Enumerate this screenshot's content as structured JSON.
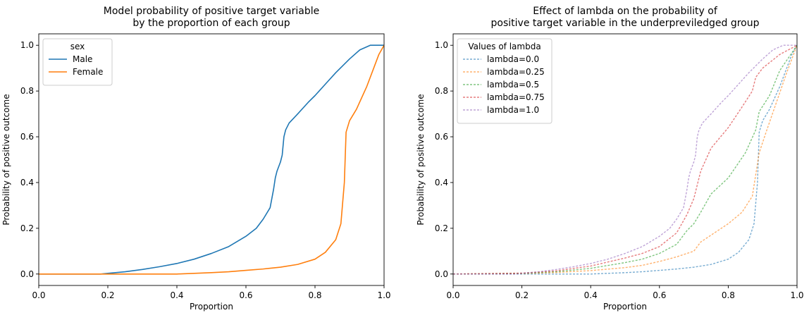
{
  "chart_data": [
    {
      "type": "line",
      "title": "Model probability of positive target variable\nby the proportion of each group",
      "xlabel": "Proportion",
      "ylabel": "Probability of positive outcome",
      "xlim": [
        0,
        1
      ],
      "ylim": [
        -0.05,
        1.05
      ],
      "xticks": [
        "0.0",
        "0.2",
        "0.4",
        "0.6",
        "0.8",
        "1.0"
      ],
      "yticks": [
        "0.0",
        "0.2",
        "0.4",
        "0.6",
        "0.8",
        "1.0"
      ],
      "grid": false,
      "legend": {
        "title": "sex",
        "location": "upper-left"
      },
      "series": [
        {
          "name": "Male",
          "color": "#1f77b4",
          "dash": "solid",
          "points": [
            [
              0,
              0
            ],
            [
              0.18,
              0
            ],
            [
              0.2,
              0.003
            ],
            [
              0.25,
              0.01
            ],
            [
              0.3,
              0.02
            ],
            [
              0.35,
              0.032
            ],
            [
              0.4,
              0.046
            ],
            [
              0.45,
              0.065
            ],
            [
              0.5,
              0.09
            ],
            [
              0.55,
              0.12
            ],
            [
              0.6,
              0.165
            ],
            [
              0.63,
              0.2
            ],
            [
              0.65,
              0.24
            ],
            [
              0.67,
              0.29
            ],
            [
              0.68,
              0.37
            ],
            [
              0.685,
              0.42
            ],
            [
              0.69,
              0.45
            ],
            [
              0.7,
              0.49
            ],
            [
              0.705,
              0.52
            ],
            [
              0.71,
              0.6
            ],
            [
              0.715,
              0.63
            ],
            [
              0.725,
              0.66
            ],
            [
              0.75,
              0.7
            ],
            [
              0.78,
              0.75
            ],
            [
              0.8,
              0.78
            ],
            [
              0.83,
              0.83
            ],
            [
              0.86,
              0.88
            ],
            [
              0.9,
              0.94
            ],
            [
              0.93,
              0.98
            ],
            [
              0.96,
              1.0
            ],
            [
              1.0,
              1.0
            ]
          ]
        },
        {
          "name": "Female",
          "color": "#ff7f0e",
          "dash": "solid",
          "points": [
            [
              0,
              0
            ],
            [
              0.4,
              0
            ],
            [
              0.45,
              0.003
            ],
            [
              0.5,
              0.006
            ],
            [
              0.55,
              0.01
            ],
            [
              0.6,
              0.016
            ],
            [
              0.65,
              0.022
            ],
            [
              0.7,
              0.03
            ],
            [
              0.75,
              0.042
            ],
            [
              0.8,
              0.065
            ],
            [
              0.83,
              0.095
            ],
            [
              0.86,
              0.15
            ],
            [
              0.875,
              0.22
            ],
            [
              0.885,
              0.4
            ],
            [
              0.89,
              0.62
            ],
            [
              0.9,
              0.67
            ],
            [
              0.92,
              0.72
            ],
            [
              0.95,
              0.82
            ],
            [
              0.97,
              0.9
            ],
            [
              0.985,
              0.96
            ],
            [
              1.0,
              1.0
            ]
          ]
        }
      ]
    },
    {
      "type": "line",
      "title": "Effect of lambda on the probability of\npositive target variable in the underpreviledged group",
      "xlabel": "Proportion",
      "ylabel": "Probability of positive outcome",
      "xlim": [
        0,
        1
      ],
      "ylim": [
        -0.05,
        1.05
      ],
      "xticks": [
        "0.0",
        "0.2",
        "0.4",
        "0.6",
        "0.8",
        "1.0"
      ],
      "yticks": [
        "0.0",
        "0.2",
        "0.4",
        "0.6",
        "0.8",
        "1.0"
      ],
      "grid": false,
      "legend": {
        "title": "Values of lambda",
        "location": "upper-left"
      },
      "series": [
        {
          "name": "lambda=0.0",
          "color": "#1f77b4",
          "dash": "dashed",
          "points": [
            [
              0,
              0
            ],
            [
              0.4,
              0
            ],
            [
              0.45,
              0.003
            ],
            [
              0.5,
              0.006
            ],
            [
              0.55,
              0.01
            ],
            [
              0.6,
              0.016
            ],
            [
              0.65,
              0.022
            ],
            [
              0.7,
              0.03
            ],
            [
              0.75,
              0.042
            ],
            [
              0.8,
              0.065
            ],
            [
              0.83,
              0.095
            ],
            [
              0.86,
              0.15
            ],
            [
              0.875,
              0.22
            ],
            [
              0.885,
              0.4
            ],
            [
              0.89,
              0.62
            ],
            [
              0.9,
              0.67
            ],
            [
              0.92,
              0.72
            ],
            [
              0.95,
              0.82
            ],
            [
              0.97,
              0.9
            ],
            [
              0.985,
              0.96
            ],
            [
              1.0,
              1.0
            ]
          ]
        },
        {
          "name": "lambda=0.25",
          "color": "#ff7f0e",
          "dash": "dashed",
          "points": [
            [
              0,
              0
            ],
            [
              0.2,
              0.002
            ],
            [
              0.3,
              0.007
            ],
            [
              0.4,
              0.015
            ],
            [
              0.5,
              0.028
            ],
            [
              0.55,
              0.038
            ],
            [
              0.6,
              0.055
            ],
            [
              0.65,
              0.075
            ],
            [
              0.7,
              0.1
            ],
            [
              0.72,
              0.14
            ],
            [
              0.75,
              0.17
            ],
            [
              0.8,
              0.22
            ],
            [
              0.84,
              0.27
            ],
            [
              0.87,
              0.34
            ],
            [
              0.89,
              0.53
            ],
            [
              0.91,
              0.62
            ],
            [
              0.94,
              0.75
            ],
            [
              0.97,
              0.88
            ],
            [
              1.0,
              1.0
            ]
          ]
        },
        {
          "name": "lambda=0.5",
          "color": "#2ca02c",
          "dash": "dashed",
          "points": [
            [
              0,
              0
            ],
            [
              0.2,
              0.003
            ],
            [
              0.3,
              0.01
            ],
            [
              0.4,
              0.025
            ],
            [
              0.5,
              0.05
            ],
            [
              0.55,
              0.065
            ],
            [
              0.6,
              0.09
            ],
            [
              0.65,
              0.13
            ],
            [
              0.68,
              0.19
            ],
            [
              0.7,
              0.22
            ],
            [
              0.72,
              0.27
            ],
            [
              0.75,
              0.35
            ],
            [
              0.8,
              0.42
            ],
            [
              0.85,
              0.53
            ],
            [
              0.88,
              0.63
            ],
            [
              0.89,
              0.71
            ],
            [
              0.92,
              0.78
            ],
            [
              0.95,
              0.89
            ],
            [
              1.0,
              1.0
            ]
          ]
        },
        {
          "name": "lambda=0.75",
          "color": "#d62728",
          "dash": "dashed",
          "points": [
            [
              0,
              0
            ],
            [
              0.2,
              0.004
            ],
            [
              0.3,
              0.014
            ],
            [
              0.4,
              0.035
            ],
            [
              0.5,
              0.07
            ],
            [
              0.55,
              0.09
            ],
            [
              0.6,
              0.12
            ],
            [
              0.65,
              0.18
            ],
            [
              0.68,
              0.26
            ],
            [
              0.7,
              0.33
            ],
            [
              0.72,
              0.45
            ],
            [
              0.75,
              0.55
            ],
            [
              0.8,
              0.64
            ],
            [
              0.84,
              0.73
            ],
            [
              0.87,
              0.8
            ],
            [
              0.88,
              0.86
            ],
            [
              0.9,
              0.9
            ],
            [
              0.95,
              0.96
            ],
            [
              1.0,
              1.0
            ]
          ]
        },
        {
          "name": "lambda=1.0",
          "color": "#9467bd",
          "dash": "dashed",
          "points": [
            [
              0,
              0
            ],
            [
              0.18,
              0
            ],
            [
              0.2,
              0.003
            ],
            [
              0.25,
              0.01
            ],
            [
              0.3,
              0.02
            ],
            [
              0.35,
              0.032
            ],
            [
              0.4,
              0.046
            ],
            [
              0.45,
              0.065
            ],
            [
              0.5,
              0.09
            ],
            [
              0.55,
              0.12
            ],
            [
              0.6,
              0.165
            ],
            [
              0.63,
              0.2
            ],
            [
              0.65,
              0.24
            ],
            [
              0.67,
              0.29
            ],
            [
              0.68,
              0.37
            ],
            [
              0.685,
              0.42
            ],
            [
              0.69,
              0.45
            ],
            [
              0.7,
              0.49
            ],
            [
              0.705,
              0.52
            ],
            [
              0.71,
              0.6
            ],
            [
              0.715,
              0.63
            ],
            [
              0.725,
              0.66
            ],
            [
              0.75,
              0.7
            ],
            [
              0.78,
              0.75
            ],
            [
              0.8,
              0.78
            ],
            [
              0.83,
              0.83
            ],
            [
              0.86,
              0.88
            ],
            [
              0.9,
              0.94
            ],
            [
              0.93,
              0.98
            ],
            [
              0.96,
              1.0
            ],
            [
              1.0,
              1.0
            ]
          ]
        }
      ]
    }
  ]
}
